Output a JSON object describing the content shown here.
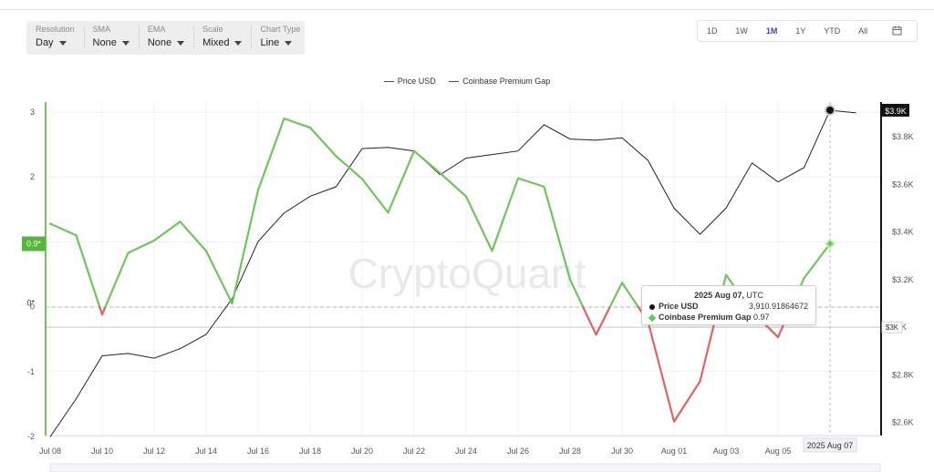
{
  "toolbar": {
    "groups": [
      {
        "label": "Resolution",
        "value": "Day"
      },
      {
        "label": "SMA",
        "value": "None"
      },
      {
        "label": "EMA",
        "value": "None"
      },
      {
        "label": "Scale",
        "value": "Mixed"
      },
      {
        "label": "Chart Type",
        "value": "Line"
      }
    ]
  },
  "ranges": [
    "1D",
    "1W",
    "1M",
    "1Y",
    "YTD",
    "All"
  ],
  "active_range": "1M",
  "watermark": "CryptoQuant",
  "tooltip": {
    "date": "2025 Aug 07,",
    "tz": "UTC",
    "price_label": "Price USD",
    "price_value": "3,910.91864672",
    "gap_label": "Coinbase Premium Gap",
    "gap_value": "0.97"
  },
  "crosshair_label": "2025 Aug 07",
  "chart_data": {
    "type": "line",
    "colors": {
      "price": "#222222",
      "gap_positive": "#6fc65a",
      "gap_negative": "#e26363",
      "legend_gap": "#3a3ee0"
    },
    "legend": [
      "Price USD",
      "Coinbase Premium Gap"
    ],
    "x_ticks": [
      "Jul 08",
      "Jul 10",
      "Jul 12",
      "Jul 14",
      "Jul 16",
      "Jul 18",
      "Jul 20",
      "Jul 22",
      "Jul 24",
      "Jul 26",
      "Jul 28",
      "Jul 30",
      "Aug 01",
      "Aug 03",
      "Aug 05"
    ],
    "left_axis": {
      "ticks": [
        "3",
        "2",
        "1",
        "0",
        "-1",
        "-2"
      ],
      "ylim": [
        -2.05,
        3.05
      ]
    },
    "right_axis": {
      "ticks": [
        "$3.8K",
        "$3.6K",
        "$3.4K",
        "$3.2K",
        "$3K",
        "$2.8K",
        "$2.6K"
      ],
      "ylim": [
        2480,
        3940
      ]
    },
    "left_marker": "0.9*",
    "left_zero_marker": "0*",
    "right_marker": "$3.9K",
    "right_zero_marker": "$3K",
    "series": [
      {
        "name": "Price USD",
        "axis": "right",
        "x": [
          "2025-07-08",
          "2025-07-09",
          "2025-07-10",
          "2025-07-11",
          "2025-07-12",
          "2025-07-13",
          "2025-07-14",
          "2025-07-15",
          "2025-07-16",
          "2025-07-17",
          "2025-07-18",
          "2025-07-19",
          "2025-07-20",
          "2025-07-21",
          "2025-07-22",
          "2025-07-23",
          "2025-07-24",
          "2025-07-25",
          "2025-07-26",
          "2025-07-27",
          "2025-07-28",
          "2025-07-29",
          "2025-07-30",
          "2025-07-31",
          "2025-08-01",
          "2025-08-02",
          "2025-08-03",
          "2025-08-04",
          "2025-08-05",
          "2025-08-06",
          "2025-08-07",
          "2025-08-08"
        ],
        "values": [
          2540,
          2700,
          2880,
          2890,
          2870,
          2910,
          2970,
          3120,
          3360,
          3480,
          3550,
          3590,
          3750,
          3755,
          3740,
          3640,
          3710,
          3725,
          3740,
          3850,
          3790,
          3785,
          3795,
          3700,
          3500,
          3390,
          3500,
          3690,
          3610,
          3670,
          3911,
          3900
        ]
      },
      {
        "name": "Coinbase Premium Gap",
        "axis": "left",
        "x": [
          "2025-07-08",
          "2025-07-09",
          "2025-07-10",
          "2025-07-11",
          "2025-07-12",
          "2025-07-13",
          "2025-07-14",
          "2025-07-15",
          "2025-07-16",
          "2025-07-17",
          "2025-07-18",
          "2025-07-19",
          "2025-07-20",
          "2025-07-21",
          "2025-07-22",
          "2025-07-23",
          "2025-07-24",
          "2025-07-25",
          "2025-07-26",
          "2025-07-27",
          "2025-07-28",
          "2025-07-29",
          "2025-07-30",
          "2025-07-31",
          "2025-08-01",
          "2025-08-02",
          "2025-08-03",
          "2025-08-04",
          "2025-08-05",
          "2025-08-06",
          "2025-08-07"
        ],
        "values": [
          1.28,
          1.1,
          -0.12,
          0.83,
          1.02,
          1.31,
          0.86,
          0.05,
          1.8,
          2.9,
          2.76,
          2.32,
          1.97,
          1.45,
          2.4,
          2.06,
          1.7,
          0.86,
          1.98,
          1.85,
          0.42,
          -0.43,
          0.37,
          -0.23,
          -1.77,
          -1.15,
          0.49,
          -0.07,
          -0.47,
          0.44,
          0.97
        ]
      }
    ]
  }
}
